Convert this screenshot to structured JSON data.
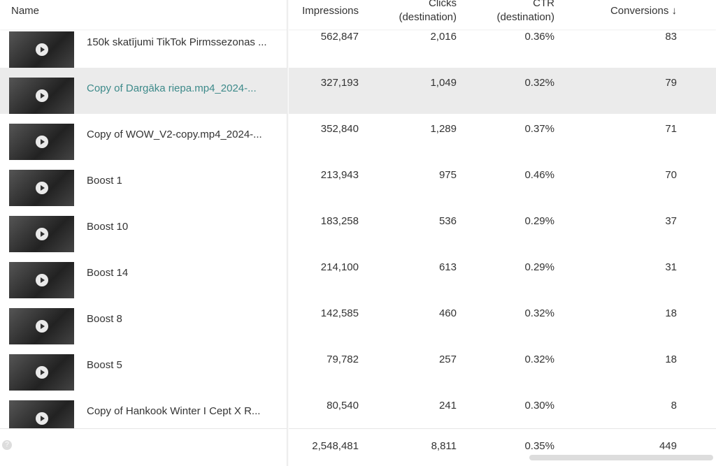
{
  "table": {
    "columns": [
      [
        "Name"
      ],
      [
        "Impressions"
      ],
      [
        "Clicks",
        "(destination)"
      ],
      [
        "CTR",
        "(destination)"
      ],
      [
        "Conversions ↓"
      ]
    ],
    "rows": [
      [
        "150k skatījumi TikTok Pirmssezonas ...",
        "562,847",
        "2,016",
        "0.36%",
        "83"
      ],
      [
        "Copy of Dargāka riepa.mp4_2024-...",
        "327,193",
        "1,049",
        "0.32%",
        "79"
      ],
      [
        "Copy of WOW_V2-copy.mp4_2024-...",
        "352,840",
        "1,289",
        "0.37%",
        "71"
      ],
      [
        "Boost 1",
        "213,943",
        "975",
        "0.46%",
        "70"
      ],
      [
        "Boost 10",
        "183,258",
        "536",
        "0.29%",
        "37"
      ],
      [
        "Boost 14",
        "214,100",
        "613",
        "0.29%",
        "31"
      ],
      [
        "Boost 8",
        "142,585",
        "460",
        "0.32%",
        "18"
      ],
      [
        "Boost 5",
        "79,782",
        "257",
        "0.32%",
        "18"
      ],
      [
        "Copy of Hankook Winter I Cept X R...",
        "80,540",
        "241",
        "0.30%",
        "8"
      ]
    ],
    "totals": [
      "2,548,481",
      "8,811",
      "0.35%",
      "449"
    ]
  }
}
